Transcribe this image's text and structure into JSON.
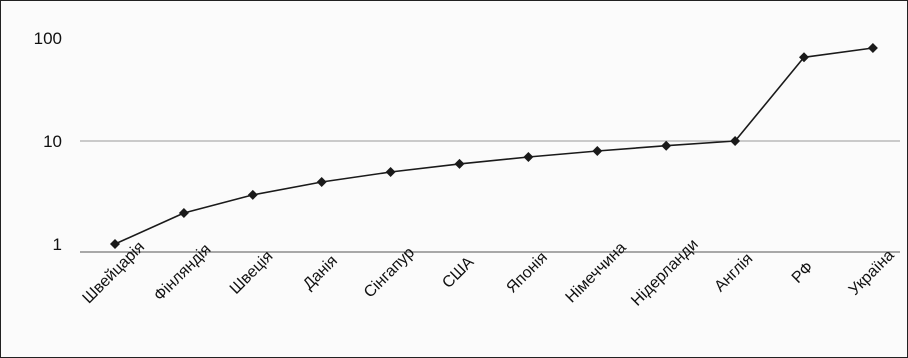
{
  "chart_data": {
    "type": "line",
    "title": "",
    "xlabel": "",
    "ylabel": "",
    "yscale": "log",
    "ylim": [
      1,
      100
    ],
    "yticks": [
      1,
      10,
      100
    ],
    "ytick_labels": [
      "1",
      "10",
      "100"
    ],
    "grid": "horizontal line at 10",
    "categories": [
      "Швейцарія",
      "Фінляндія",
      "Швеція",
      "Данія",
      "Сінгапур",
      "США",
      "Японія",
      "Німеччина",
      "Нідерланди",
      "Англія",
      "РФ",
      "Україна"
    ],
    "series": [
      {
        "values": [
          1,
          2,
          3,
          4,
          5,
          6,
          7,
          8,
          9,
          10,
          65,
          80
        ]
      }
    ],
    "colors": {
      "line": "#1a1a1a",
      "grid": "#9a9a9a",
      "axis": "#555555"
    },
    "marker": "diamond"
  }
}
